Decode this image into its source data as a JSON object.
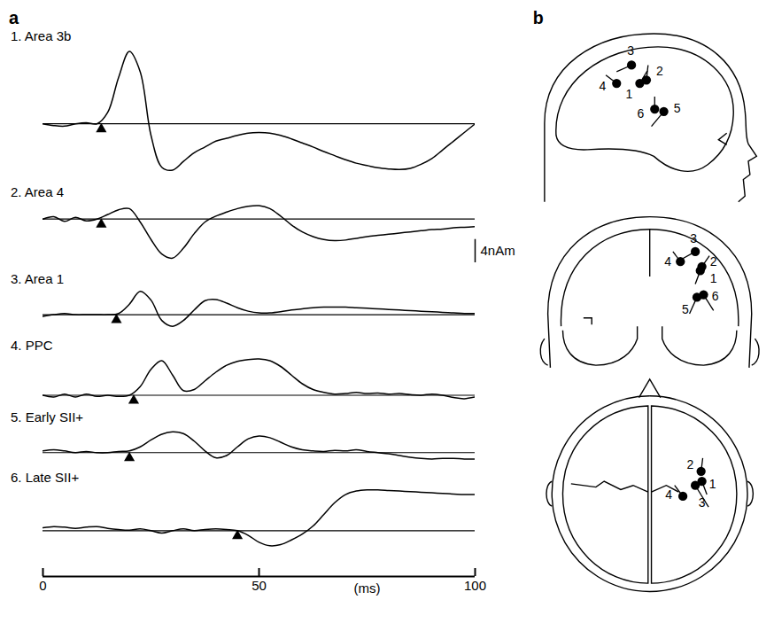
{
  "chart_data": {
    "type": "line",
    "panel_label": "a",
    "color": "#000000",
    "xlabel": "(ms)",
    "xlim": [
      0,
      100
    ],
    "xticks": [
      0,
      50,
      100
    ],
    "tick_labels": "x",
    "x": [
      0,
      2.5,
      5,
      7.5,
      10,
      12.5,
      15,
      17.5,
      20,
      22.5,
      25,
      27.5,
      30,
      32.5,
      35,
      37.5,
      40,
      42.5,
      45,
      47.5,
      50,
      52.5,
      55,
      57.5,
      60,
      62.5,
      65,
      67.5,
      70,
      72.5,
      75,
      77.5,
      80,
      82.5,
      85,
      87.5,
      90,
      92.5,
      95,
      97.5,
      100
    ],
    "series": [
      {
        "name": "1. Area 3b",
        "onset": 13.5,
        "ylim": [
          -9,
          13.5
        ],
        "values": [
          0,
          -0.3,
          -0.4,
          0,
          0.2,
          0,
          2,
          8,
          12.5,
          9,
          -2,
          -7.5,
          -8,
          -6.5,
          -5,
          -4,
          -3,
          -2.5,
          -2,
          -1.6,
          -1.5,
          -1.6,
          -2,
          -2.6,
          -3.3,
          -4,
          -4.8,
          -5.5,
          -6.2,
          -6.8,
          -7.2,
          -7.6,
          -7.8,
          -7.9,
          -7.7,
          -7,
          -6,
          -4.5,
          -3,
          -1.5,
          0
        ]
      },
      {
        "name": "2. Area 4",
        "onset": 13.5,
        "ylim": [
          -7.5,
          3
        ],
        "scale_bar": {
          "value": 4,
          "label": "4nAm"
        },
        "values": [
          0,
          0.4,
          -0.4,
          0.3,
          -0.3,
          0,
          0.8,
          1.6,
          1.8,
          -0.5,
          -3.5,
          -6,
          -6.7,
          -5,
          -2.5,
          -0.5,
          0.5,
          1.2,
          1.8,
          2.2,
          2.3,
          1.8,
          0.5,
          -1,
          -2.2,
          -3,
          -3.5,
          -3.7,
          -3.6,
          -3.3,
          -3,
          -2.8,
          -2.6,
          -2.4,
          -2.2,
          -2,
          -1.8,
          -1.7,
          -1.5,
          -1.4,
          -1.3
        ]
      },
      {
        "name": "3. Area 1",
        "onset": 17,
        "ylim": [
          -2.5,
          4.5
        ],
        "values": [
          -0.3,
          0,
          0.2,
          0,
          0,
          0,
          0,
          0.2,
          1.8,
          4,
          2.5,
          -1,
          -2,
          -1,
          0.8,
          2.4,
          2.6,
          2,
          1.2,
          0.6,
          0.3,
          0.3,
          0.5,
          0.8,
          1,
          1.2,
          1.3,
          1.3,
          1.3,
          1.2,
          1.1,
          1,
          0.9,
          0.8,
          0.7,
          0.6,
          0.5,
          0.4,
          0.3,
          0.2,
          0.2
        ]
      },
      {
        "name": "4. PPC",
        "onset": 21,
        "ylim": [
          -1,
          7
        ],
        "values": [
          0,
          -0.3,
          0.2,
          -0.3,
          0.2,
          -0.2,
          0,
          -0.2,
          0,
          1.5,
          4.5,
          6,
          3.5,
          0.8,
          1,
          2.5,
          4,
          5.2,
          5.9,
          6.2,
          6.3,
          6,
          5,
          3.5,
          2,
          1,
          0.5,
          0.2,
          0.3,
          0.5,
          0.3,
          0.4,
          0.2,
          0.3,
          0.1,
          0,
          0.2,
          0,
          -0.4,
          -0.6,
          -0.3
        ]
      },
      {
        "name": "5. Early SII+",
        "onset": 20,
        "ylim": [
          -1.5,
          4.5
        ],
        "values": [
          0.3,
          0.5,
          0.3,
          0,
          0.2,
          0,
          0,
          0.2,
          0.3,
          1,
          2.2,
          3.2,
          3.6,
          3.3,
          2,
          0.3,
          -0.9,
          -0.5,
          1,
          2.4,
          2.9,
          2.6,
          1.8,
          1,
          0.5,
          0.3,
          0.2,
          0.4,
          0.3,
          0.5,
          0.2,
          0,
          -0.2,
          -0.5,
          -0.8,
          -1,
          -1.1,
          -1,
          -1,
          -1.1,
          -1.1
        ]
      },
      {
        "name": "6. Late SII+",
        "onset": 45,
        "ylim": [
          -3,
          7.5
        ],
        "values": [
          0.5,
          0.7,
          0.6,
          0.4,
          0.6,
          0.7,
          0.4,
          0.2,
          0.1,
          0.3,
          0,
          -0.4,
          0,
          0.3,
          0,
          0.2,
          0.3,
          0.2,
          0,
          -0.8,
          -2,
          -2.6,
          -2.4,
          -1.6,
          -0.6,
          0.8,
          2.8,
          4.8,
          6.2,
          6.8,
          7,
          7,
          6.9,
          6.8,
          6.7,
          6.6,
          6.5,
          6.4,
          6.3,
          6.2,
          6.2
        ]
      }
    ]
  },
  "diagram": {
    "panel_label": "b",
    "views": [
      {
        "sources": [
          "1",
          "2",
          "3",
          "4",
          "5",
          "6"
        ]
      },
      {
        "sources": [
          "1",
          "2",
          "3",
          "4",
          "5",
          "6"
        ]
      },
      {
        "sources": [
          "1",
          "2",
          "3",
          "4"
        ]
      }
    ]
  }
}
